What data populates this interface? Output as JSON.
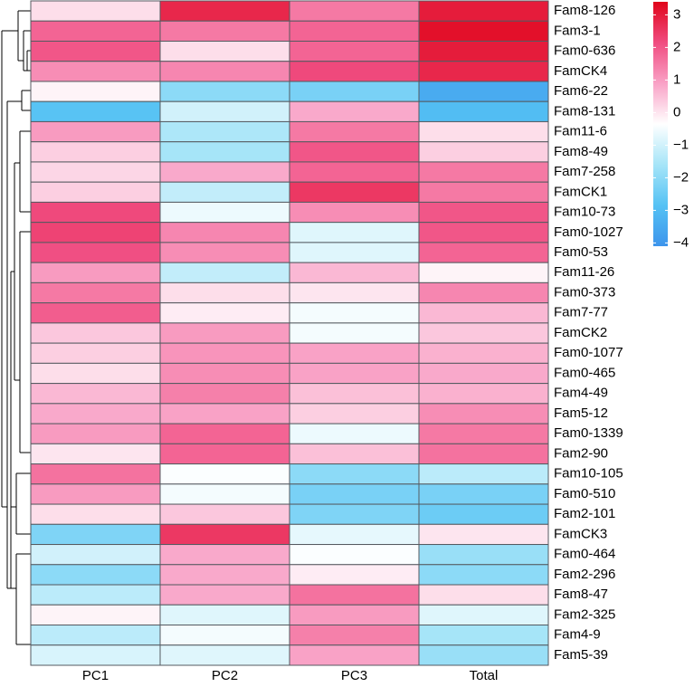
{
  "chart_data": {
    "type": "heatmap",
    "x": [
      "PC1",
      "PC2",
      "PC3",
      "Total"
    ],
    "y": [
      "Fam8-126",
      "Fam3-1",
      "Fam0-636",
      "FamCK4",
      "Fam6-22",
      "Fam8-131",
      "Fam11-6",
      "Fam8-49",
      "Fam7-258",
      "FamCK1",
      "Fam10-73",
      "Fam0-1027",
      "Fam0-53",
      "Fam11-26",
      "Fam0-373",
      "Fam7-77",
      "FamCK2",
      "Fam0-1077",
      "Fam0-465",
      "Fam4-49",
      "Fam5-12",
      "Fam0-1339",
      "Fam2-90",
      "Fam10-105",
      "Fam0-510",
      "Fam2-101",
      "FamCK3",
      "Fam0-464",
      "Fam2-296",
      "Fam8-47",
      "Fam2-325",
      "Fam4-9",
      "Fam5-39"
    ],
    "values": [
      [
        0.1,
        2.8,
        1.5,
        3.0
      ],
      [
        1.8,
        1.5,
        1.8,
        3.2
      ],
      [
        2.0,
        0.1,
        1.8,
        3.0
      ],
      [
        1.2,
        1.3,
        2.2,
        2.8
      ],
      [
        -0.2,
        -2.0,
        -2.3,
        -3.5
      ],
      [
        -2.8,
        -1.0,
        0.8,
        -3.0
      ],
      [
        1.0,
        -1.5,
        1.5,
        0.1
      ],
      [
        0.3,
        -1.6,
        2.0,
        0.3
      ],
      [
        0.2,
        0.8,
        1.8,
        1.5
      ],
      [
        0.3,
        -1.2,
        2.5,
        1.5
      ],
      [
        2.2,
        -0.6,
        1.2,
        2.0
      ],
      [
        2.3,
        1.3,
        -0.8,
        2.0
      ],
      [
        2.1,
        1.2,
        -0.8,
        1.8
      ],
      [
        1.0,
        -1.2,
        0.6,
        -0.2
      ],
      [
        1.5,
        0.1,
        0.0,
        1.3
      ],
      [
        1.9,
        -0.1,
        -0.5,
        0.6
      ],
      [
        0.4,
        1.0,
        -0.5,
        0.4
      ],
      [
        0.3,
        1.1,
        0.9,
        0.7
      ],
      [
        0.1,
        1.2,
        0.9,
        0.8
      ],
      [
        0.6,
        1.4,
        0.5,
        0.7
      ],
      [
        0.8,
        0.9,
        0.3,
        1.2
      ],
      [
        1.0,
        1.8,
        -0.6,
        1.5
      ],
      [
        0.0,
        1.8,
        0.5,
        1.6
      ],
      [
        1.6,
        -0.4,
        -2.0,
        -1.3
      ],
      [
        1.0,
        -0.5,
        -2.3,
        -2.3
      ],
      [
        0.1,
        0.4,
        -2.2,
        -2.5
      ],
      [
        -2.2,
        2.5,
        -0.7,
        0.0
      ],
      [
        -1.0,
        0.8,
        -0.4,
        -1.8
      ],
      [
        -2.0,
        0.8,
        -0.1,
        -2.0
      ],
      [
        -1.3,
        0.8,
        1.6,
        0.1
      ],
      [
        -0.2,
        -0.8,
        1.0,
        -0.8
      ],
      [
        -1.3,
        -0.5,
        1.4,
        -1.6
      ],
      [
        -0.9,
        -0.8,
        0.9,
        -1.8
      ]
    ],
    "colorlim": [
      -4.1,
      3.4
    ],
    "colors": [
      "#3d95ec",
      "#55c2f4",
      "#a6e5f8",
      "#ffffff",
      "#f9a2c6",
      "#f04c80",
      "#e0051a"
    ],
    "colorticks": [
      3,
      2,
      1,
      0,
      {
        "value": -1,
        "label": "−1"
      },
      {
        "value": -2,
        "label": "−2"
      },
      {
        "value": -3,
        "label": "−3"
      },
      {
        "value": -4,
        "label": "−4"
      }
    ]
  }
}
